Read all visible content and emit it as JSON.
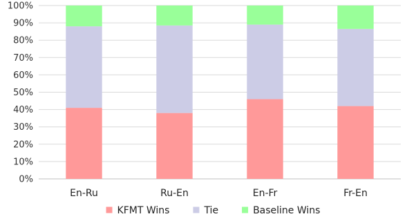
{
  "chart_data": {
    "type": "bar",
    "stacked": true,
    "percent": true,
    "categories": [
      "En-Ru",
      "Ru-En",
      "En-Fr",
      "Fr-En"
    ],
    "series": [
      {
        "name": "KFMT Wins",
        "color": "#ff9999",
        "values": [
          41,
          38,
          46,
          42
        ]
      },
      {
        "name": "Tie",
        "color": "#cccce6",
        "values": [
          47,
          50.5,
          43,
          44.5
        ]
      },
      {
        "name": "Baseline Wins",
        "color": "#99ff99",
        "values": [
          12,
          11.5,
          11,
          13.5
        ]
      }
    ],
    "ylim": [
      0,
      100
    ],
    "yticks": [
      "0%",
      "10%",
      "20%",
      "30%",
      "40%",
      "50%",
      "60%",
      "70%",
      "80%",
      "90%",
      "100%"
    ],
    "grid": true,
    "legend": "bottom"
  }
}
